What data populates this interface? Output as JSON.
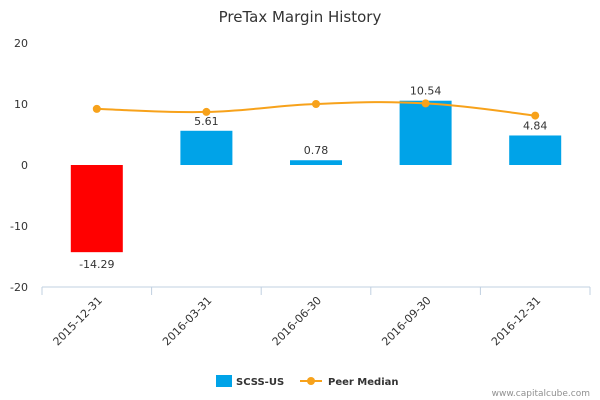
{
  "chart_data": {
    "type": "bar",
    "title": "PreTax Margin History",
    "categories": [
      "2015-12-31",
      "2016-03-31",
      "2016-06-30",
      "2016-09-30",
      "2016-12-31"
    ],
    "series": [
      {
        "name": "SCSS-US",
        "type": "bar",
        "values": [
          -14.29,
          5.61,
          0.78,
          10.54,
          4.84
        ],
        "labels": [
          "-14.29",
          "5.61",
          "0.78",
          "10.54",
          "4.84"
        ],
        "color": "#00a3e8",
        "negative_color": "#ff0000"
      },
      {
        "name": "Peer Median",
        "type": "line",
        "values": [
          9.2,
          8.7,
          10.0,
          10.1,
          8.1
        ],
        "color": "#f7a21b"
      }
    ],
    "ylim": [
      -20,
      20
    ],
    "yticks": [
      -20,
      -10,
      0,
      10,
      20
    ],
    "grid": false,
    "legend": "bottom-center"
  },
  "credit": "www.capitalcube.com"
}
